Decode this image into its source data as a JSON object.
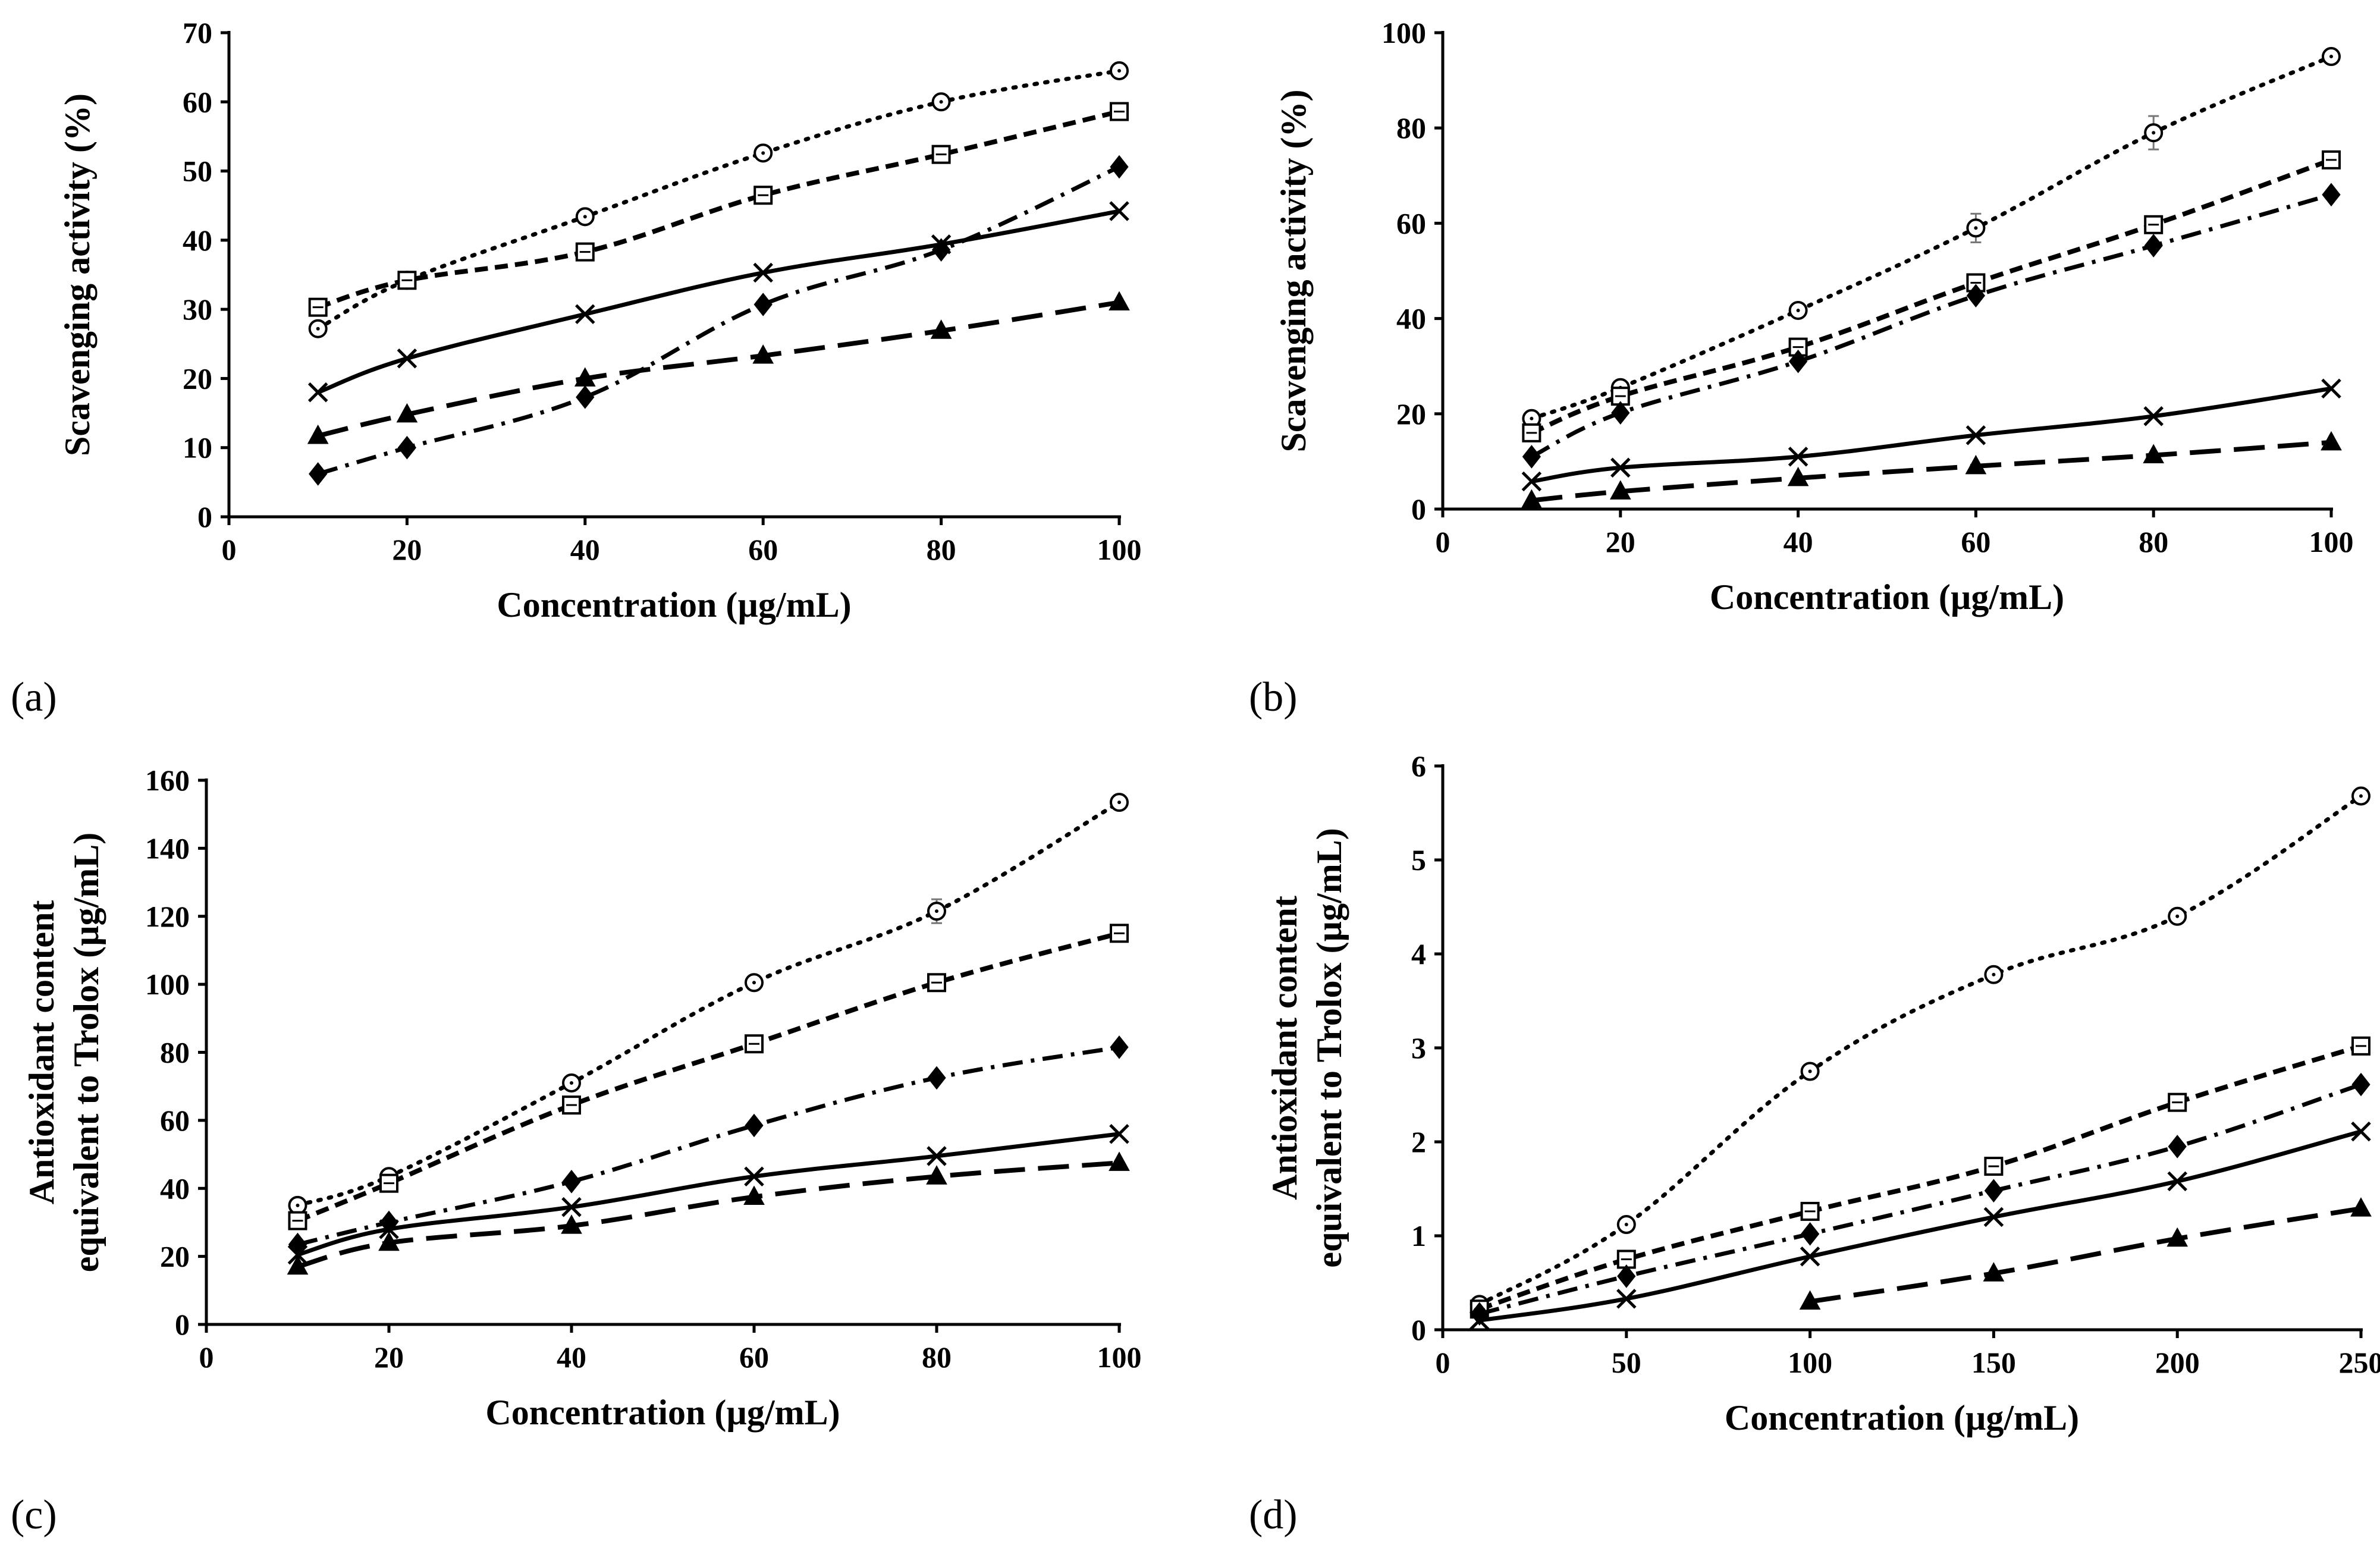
{
  "figure": {
    "panel_labels": [
      "(a)",
      "(b)",
      "(c)",
      "(d)"
    ]
  },
  "chart_data": [
    {
      "type": "line",
      "panel": "(a)",
      "xlabel": "Concentration (µg/mL)",
      "ylabel": [
        "Scavenging activity (%)"
      ],
      "xlim": [
        0,
        100
      ],
      "ylim": [
        0,
        70
      ],
      "xticks": [
        0,
        20,
        40,
        60,
        80,
        100
      ],
      "yticks": [
        0,
        10,
        20,
        30,
        40,
        50,
        60,
        70
      ],
      "grid": false,
      "x": [
        10,
        20,
        40,
        60,
        80,
        100
      ],
      "series": [
        {
          "values": [
            27.2,
            34.2,
            43.4,
            52.6,
            60.0,
            64.5
          ],
          "marker": "circle-open",
          "line": "dotted"
        },
        {
          "values": [
            30.3,
            34.2,
            38.3,
            46.5,
            52.4,
            58.6
          ],
          "marker": "square-open",
          "line": "dashed"
        },
        {
          "values": [
            6.2,
            10.0,
            17.3,
            30.7,
            38.6,
            50.6
          ],
          "marker": "diamond",
          "line": "dashdot"
        },
        {
          "values": [
            18.0,
            22.9,
            29.3,
            35.3,
            39.4,
            44.2
          ],
          "marker": "x",
          "line": "solid"
        },
        {
          "values": [
            11.7,
            14.8,
            20.0,
            23.3,
            26.9,
            31.0
          ],
          "marker": "triangle",
          "line": "longdash"
        }
      ]
    },
    {
      "type": "line",
      "panel": "(b)",
      "xlabel": "Concentration (µg/mL)",
      "ylabel": [
        "Scavenging activity (%)"
      ],
      "xlim": [
        0,
        100
      ],
      "ylim": [
        0,
        100
      ],
      "xticks": [
        0,
        20,
        40,
        60,
        80,
        100
      ],
      "yticks": [
        0,
        20,
        40,
        60,
        80,
        100
      ],
      "grid": false,
      "x": [
        10,
        20,
        40,
        60,
        80,
        100
      ],
      "series": [
        {
          "values": [
            19.0,
            25.5,
            41.7,
            59.0,
            79.0,
            95.0
          ],
          "errors": [
            1,
            1,
            1,
            3,
            3.5,
            1
          ],
          "marker": "circle-open",
          "line": "dotted"
        },
        {
          "values": [
            16.0,
            23.7,
            34.0,
            47.5,
            59.7,
            73.3
          ],
          "marker": "square-open",
          "line": "dashed"
        },
        {
          "values": [
            11.0,
            20.2,
            31.0,
            44.8,
            55.3,
            66.0
          ],
          "marker": "diamond",
          "line": "dashdot"
        },
        {
          "values": [
            5.8,
            8.7,
            11.0,
            15.5,
            19.5,
            25.3
          ],
          "marker": "x",
          "line": "solid"
        },
        {
          "values": [
            1.8,
            3.7,
            6.5,
            9.0,
            11.3,
            14.0
          ],
          "marker": "triangle",
          "line": "longdash"
        }
      ]
    },
    {
      "type": "line",
      "panel": "(c)",
      "xlabel": "Concentration (µg/mL)",
      "ylabel": [
        "Antioxidant content",
        "equivalent to Trolox (µg/mL)"
      ],
      "xlim": [
        0,
        100
      ],
      "ylim": [
        0,
        160
      ],
      "xticks": [
        0,
        20,
        40,
        60,
        80,
        100
      ],
      "yticks": [
        0,
        20,
        40,
        60,
        80,
        100,
        120,
        140,
        160
      ],
      "grid": false,
      "x": [
        10,
        20,
        40,
        60,
        80,
        100
      ],
      "series": [
        {
          "values": [
            35.0,
            43.5,
            71.0,
            100.5,
            121.5,
            153.5
          ],
          "errors": [
            1,
            1,
            1.5,
            1.5,
            3.5,
            1
          ],
          "marker": "circle-open",
          "line": "dotted"
        },
        {
          "values": [
            30.5,
            41.5,
            64.5,
            82.5,
            100.5,
            115.0
          ],
          "marker": "square-open",
          "line": "dashed"
        },
        {
          "values": [
            23.5,
            30.0,
            42.0,
            58.5,
            72.5,
            81.5
          ],
          "marker": "diamond",
          "line": "dashdot"
        },
        {
          "values": [
            20.5,
            28.0,
            34.5,
            43.5,
            49.5,
            56.0
          ],
          "marker": "x",
          "line": "solid"
        },
        {
          "values": [
            17.0,
            24.0,
            29.0,
            37.5,
            43.5,
            47.5
          ],
          "marker": "triangle",
          "line": "longdash"
        }
      ]
    },
    {
      "type": "line",
      "panel": "(d)",
      "xlabel": "Concentration (µg/mL)",
      "ylabel": [
        "Antioxidant content",
        "equivalent to Trolox (µg/mL)"
      ],
      "xlim": [
        0,
        250
      ],
      "ylim": [
        0,
        6
      ],
      "xticks": [
        0,
        50,
        100,
        150,
        200,
        250
      ],
      "yticks": [
        0,
        1,
        2,
        3,
        4,
        5,
        6
      ],
      "grid": false,
      "series": [
        {
          "x": [
            10,
            50,
            100,
            150,
            200,
            250
          ],
          "values": [
            0.27,
            1.12,
            2.75,
            3.78,
            4.4,
            5.68
          ],
          "marker": "circle-open",
          "line": "dotted"
        },
        {
          "x": [
            10,
            50,
            100,
            150,
            200,
            250
          ],
          "values": [
            0.22,
            0.75,
            1.26,
            1.74,
            2.42,
            3.02
          ],
          "marker": "square-open",
          "line": "dashed"
        },
        {
          "x": [
            10,
            50,
            100,
            150,
            200,
            250
          ],
          "values": [
            0.17,
            0.57,
            1.02,
            1.48,
            1.95,
            2.61
          ],
          "marker": "diamond",
          "line": "dashdot"
        },
        {
          "x": [
            10,
            50,
            100,
            150,
            200,
            250
          ],
          "values": [
            0.1,
            0.33,
            0.78,
            1.2,
            1.58,
            2.11
          ],
          "marker": "x",
          "line": "solid"
        },
        {
          "x": [
            100,
            150,
            200,
            250
          ],
          "values": [
            0.3,
            0.6,
            0.97,
            1.29
          ],
          "marker": "triangle",
          "line": "longdash"
        }
      ]
    }
  ]
}
